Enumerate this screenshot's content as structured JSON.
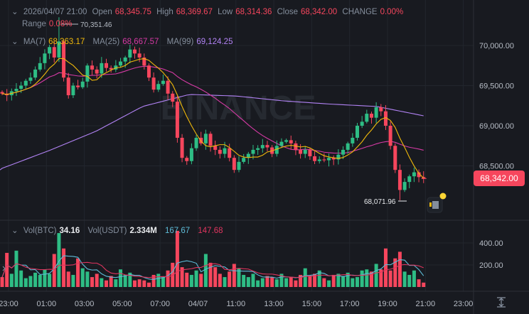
{
  "header": {
    "datetime": "2026/04/07 21:00",
    "open_label": "Open",
    "open": "68,345.75",
    "high_label": "High",
    "high": "68,369.67",
    "low_label": "Low",
    "low": "68,314.36",
    "close_label": "Close",
    "close": "68,342.00",
    "change_label": "CHANGE",
    "change": "0.00%",
    "range_label": "Range",
    "range": "0.08%"
  },
  "ma_legend": {
    "ma7_label": "MA(7)",
    "ma7": "68,363.17",
    "ma25_label": "MA(25)",
    "ma25": "68,667.57",
    "ma99_label": "MA(99)",
    "ma99": "69,124.25"
  },
  "vol_legend": {
    "btc_label": "Vol(BTC)",
    "btc": "34.16",
    "usdt_label": "Vol(USDT)",
    "usdt": "2.334M",
    "ma1": "167.67",
    "ma2": "147.68"
  },
  "watermark": "BINANCE",
  "annotations": {
    "high_marker": "70,351.46",
    "low_marker": "68,071.96"
  },
  "current_price": "68,342.00",
  "colors": {
    "up": "#2ebd85",
    "down": "#f6465d",
    "ma7": "#f0b90b",
    "ma25": "#d63aa5",
    "ma99": "#b283f5",
    "vol_ma1": "#5ebcd8",
    "vol_ma2": "#e0355f",
    "background": "#181a20"
  },
  "chart_data": {
    "type": "candlestick",
    "price_axis": {
      "ticks": [
        "70,000.00",
        "69,500.00",
        "69,000.00",
        "68,500.00"
      ],
      "tick_values": [
        70000,
        69500,
        69000,
        68500
      ]
    },
    "volume_axis": {
      "ticks": [
        "400.00",
        "200.00"
      ],
      "tick_values": [
        400,
        200
      ]
    },
    "time_ticks": [
      "23:00",
      "01:00",
      "03:00",
      "05:00",
      "07:00",
      "04/07",
      "11:00",
      "13:00",
      "15:00",
      "17:00",
      "19:00",
      "21:00",
      "23:00"
    ],
    "grid": true,
    "closes": [
      69400,
      69380,
      69430,
      69460,
      69500,
      69560,
      69600,
      69700,
      69780,
      69900,
      69980,
      69850,
      70050,
      69600,
      69380,
      69500,
      69480,
      69550,
      69750,
      69700,
      69650,
      69780,
      69720,
      69700,
      69750,
      69800,
      69850,
      69950,
      69900,
      69850,
      69750,
      69600,
      69450,
      69520,
      69560,
      69400,
      69300,
      68850,
      68600,
      68560,
      68720,
      68850,
      68780,
      68900,
      68750,
      68700,
      68650,
      68720,
      68600,
      68450,
      68550,
      68600,
      68650,
      68700,
      68720,
      68760,
      68730,
      68650,
      68750,
      68800,
      68820,
      68780,
      68700,
      68650,
      68700,
      68620,
      68560,
      68580,
      68570,
      68600,
      68580,
      68640,
      68700,
      68780,
      68850,
      69000,
      69050,
      69150,
      69100,
      69230,
      69180,
      69000,
      68750,
      68450,
      68200,
      68300,
      68370,
      68420,
      68360,
      68342
    ],
    "volumes": [
      90,
      310,
      120,
      330,
      150,
      80,
      100,
      130,
      110,
      160,
      120,
      300,
      490,
      350,
      140,
      110,
      260,
      170,
      140,
      90,
      120,
      80,
      60,
      100,
      70,
      160,
      110,
      130,
      60,
      70,
      60,
      40,
      110,
      120,
      90,
      150,
      220,
      510,
      180,
      130,
      110,
      150,
      120,
      300,
      220,
      180,
      120,
      90,
      140,
      210,
      170,
      110,
      90,
      120,
      60,
      80,
      100,
      90,
      70,
      120,
      80,
      90,
      60,
      110,
      170,
      100,
      120,
      150,
      80,
      60,
      110,
      120,
      100,
      130,
      80,
      90,
      150,
      160,
      140,
      210,
      160,
      350,
      150,
      260,
      320,
      140,
      110,
      150,
      70,
      40
    ],
    "ma99_samples": [
      68470,
      68690,
      68930,
      69240,
      69390,
      69370,
      69310,
      69270,
      69240,
      69124
    ]
  }
}
